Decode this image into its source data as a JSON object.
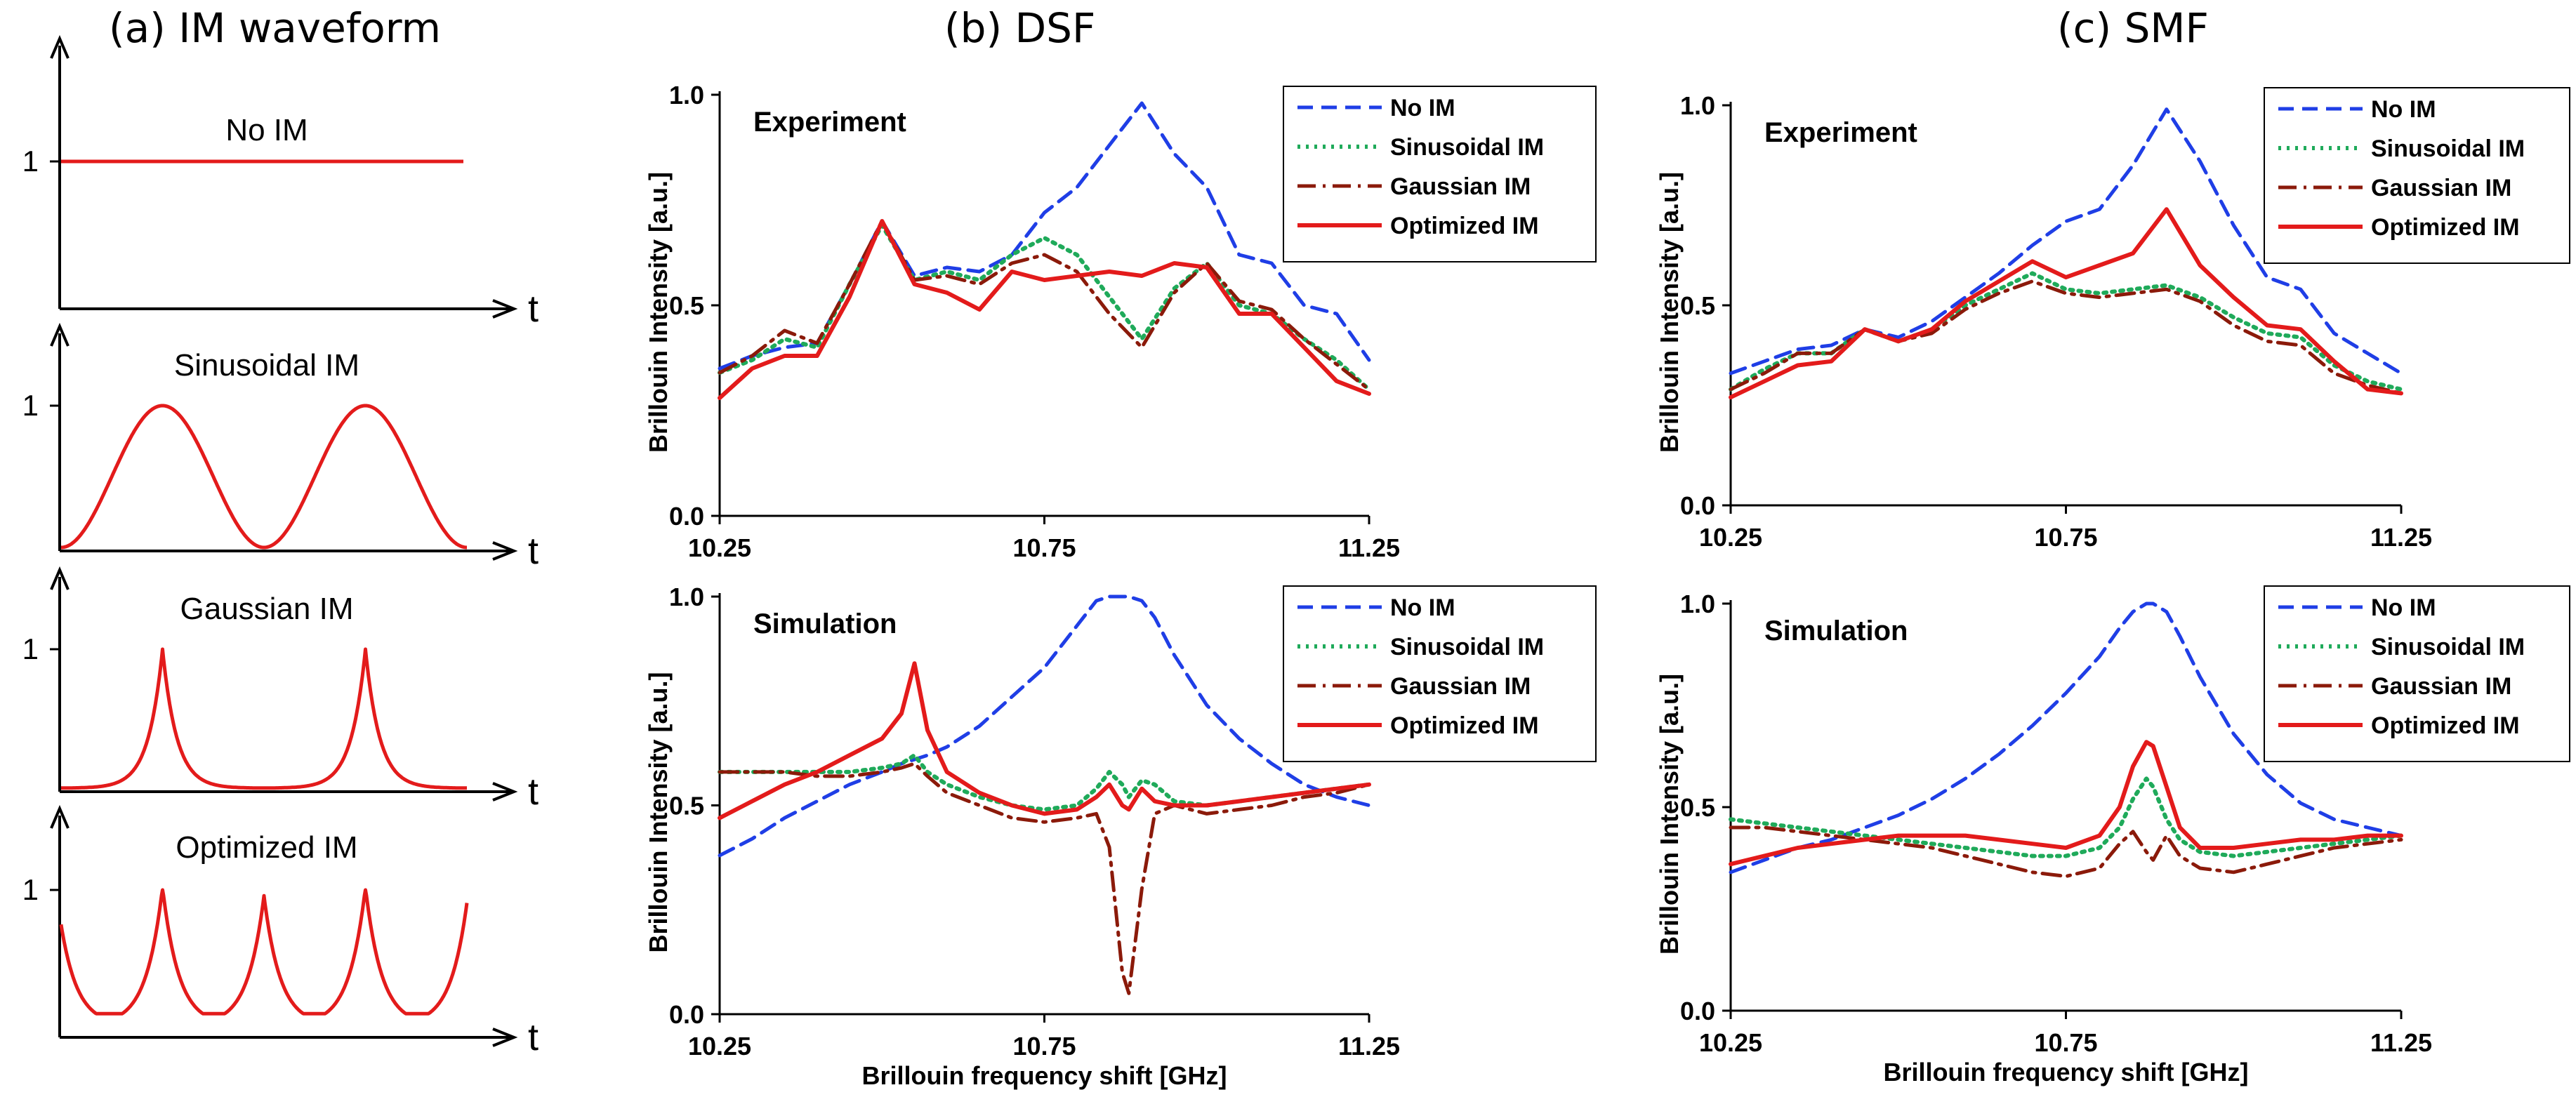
{
  "panel_titles": {
    "a": "(a) IM waveform",
    "b": "(b) DSF",
    "c": "(c) SMF"
  },
  "waveform_panel": {
    "t_label": "t",
    "y_tick": "1",
    "waveforms": [
      {
        "key": "no",
        "label": "No IM"
      },
      {
        "key": "sin",
        "label": "Sinusoidal IM"
      },
      {
        "key": "gauss",
        "label": "Gaussian IM"
      },
      {
        "key": "opt",
        "label": "Optimized IM"
      }
    ]
  },
  "colors": {
    "no_im": "#1f3ee6",
    "sinusoidal": "#1faa5a",
    "gaussian": "#8b1a0a",
    "optimized": "#e31b1b",
    "axis": "#000000"
  },
  "chart_data": [
    {
      "id": "dsf-exp",
      "type": "line",
      "panel": "DSF",
      "title": "Experiment",
      "xlabel": "",
      "ylabel": "Brillouin Intensity [a.u.]",
      "xlim": [
        10.25,
        11.25
      ],
      "ylim": [
        0,
        1.0
      ],
      "xticks": [
        "10.25",
        "10.75",
        "11.25"
      ],
      "yticks": [
        "0.0",
        "0.5",
        "1.0"
      ],
      "legend": "top-right",
      "x": [
        10.25,
        10.3,
        10.35,
        10.4,
        10.45,
        10.5,
        10.55,
        10.6,
        10.65,
        10.7,
        10.75,
        10.8,
        10.85,
        10.9,
        10.95,
        11.0,
        11.05,
        11.1,
        11.15,
        11.2,
        11.25
      ],
      "series": [
        {
          "name": "No IM",
          "style": "dashed",
          "values": [
            0.35,
            0.38,
            0.4,
            0.41,
            0.55,
            0.7,
            0.57,
            0.59,
            0.58,
            0.62,
            0.72,
            0.78,
            0.88,
            0.98,
            0.86,
            0.78,
            0.62,
            0.6,
            0.5,
            0.48,
            0.37
          ]
        },
        {
          "name": "Sinusoidal IM",
          "style": "dotted",
          "values": [
            0.34,
            0.37,
            0.42,
            0.4,
            0.55,
            0.69,
            0.56,
            0.58,
            0.56,
            0.62,
            0.66,
            0.62,
            0.52,
            0.42,
            0.54,
            0.6,
            0.5,
            0.48,
            0.42,
            0.37,
            0.3
          ]
        },
        {
          "name": "Gaussian IM",
          "style": "dashdot",
          "values": [
            0.34,
            0.38,
            0.44,
            0.41,
            0.55,
            0.7,
            0.56,
            0.57,
            0.55,
            0.6,
            0.62,
            0.58,
            0.48,
            0.4,
            0.53,
            0.6,
            0.51,
            0.49,
            0.42,
            0.36,
            0.3
          ]
        },
        {
          "name": "Optimized IM",
          "style": "solid",
          "values": [
            0.28,
            0.35,
            0.38,
            0.38,
            0.52,
            0.7,
            0.55,
            0.53,
            0.49,
            0.58,
            0.56,
            0.57,
            0.58,
            0.57,
            0.6,
            0.59,
            0.48,
            0.48,
            0.4,
            0.32,
            0.29
          ]
        }
      ]
    },
    {
      "id": "dsf-sim",
      "type": "line",
      "panel": "DSF",
      "title": "Simulation",
      "xlabel": "Brillouin frequency shift [GHz]",
      "ylabel": "Brillouin Intensity [a.u.]",
      "xlim": [
        10.25,
        11.25
      ],
      "ylim": [
        0,
        1.0
      ],
      "xticks": [
        "10.25",
        "10.75",
        "11.25"
      ],
      "yticks": [
        "0.0",
        "0.5",
        "1.0"
      ],
      "legend": "top-right",
      "x": [
        10.25,
        10.3,
        10.35,
        10.4,
        10.45,
        10.5,
        10.53,
        10.55,
        10.57,
        10.6,
        10.65,
        10.7,
        10.75,
        10.8,
        10.83,
        10.85,
        10.87,
        10.88,
        10.9,
        10.92,
        10.95,
        11.0,
        11.05,
        11.1,
        11.15,
        11.2,
        11.25
      ],
      "series": [
        {
          "name": "No IM",
          "style": "dashed",
          "values": [
            0.38,
            0.42,
            0.47,
            0.51,
            0.55,
            0.58,
            0.6,
            0.61,
            0.62,
            0.64,
            0.69,
            0.76,
            0.83,
            0.93,
            0.99,
            1.0,
            1.0,
            1.0,
            0.99,
            0.95,
            0.86,
            0.74,
            0.66,
            0.6,
            0.55,
            0.52,
            0.5
          ]
        },
        {
          "name": "Sinusoidal IM",
          "style": "dotted",
          "values": [
            0.58,
            0.58,
            0.58,
            0.58,
            0.58,
            0.59,
            0.6,
            0.62,
            0.58,
            0.55,
            0.52,
            0.5,
            0.49,
            0.5,
            0.54,
            0.58,
            0.55,
            0.52,
            0.56,
            0.55,
            0.51,
            0.5,
            0.51,
            0.52,
            0.53,
            0.54,
            0.55
          ]
        },
        {
          "name": "Gaussian IM",
          "style": "dashdot",
          "values": [
            0.58,
            0.58,
            0.58,
            0.57,
            0.57,
            0.58,
            0.59,
            0.6,
            0.57,
            0.53,
            0.5,
            0.47,
            0.46,
            0.47,
            0.48,
            0.4,
            0.1,
            0.05,
            0.3,
            0.48,
            0.5,
            0.48,
            0.49,
            0.5,
            0.52,
            0.53,
            0.55
          ]
        },
        {
          "name": "Optimized IM",
          "style": "solid",
          "values": [
            0.47,
            0.51,
            0.55,
            0.58,
            0.62,
            0.66,
            0.72,
            0.84,
            0.68,
            0.58,
            0.53,
            0.5,
            0.48,
            0.49,
            0.52,
            0.55,
            0.5,
            0.49,
            0.54,
            0.51,
            0.5,
            0.5,
            0.51,
            0.52,
            0.53,
            0.54,
            0.55
          ]
        }
      ]
    },
    {
      "id": "smf-exp",
      "type": "line",
      "panel": "SMF",
      "title": "Experiment",
      "xlabel": "",
      "ylabel": "Brillouin Intensity [a.u.]",
      "xlim": [
        10.25,
        11.25
      ],
      "ylim": [
        0,
        1.0
      ],
      "xticks": [
        "10.25",
        "10.75",
        "11.25"
      ],
      "yticks": [
        "0.0",
        "0.5",
        "1.0"
      ],
      "legend": "top-right",
      "x": [
        10.25,
        10.3,
        10.35,
        10.4,
        10.45,
        10.5,
        10.55,
        10.6,
        10.65,
        10.7,
        10.75,
        10.8,
        10.85,
        10.9,
        10.95,
        11.0,
        11.05,
        11.1,
        11.15,
        11.2,
        11.25
      ],
      "series": [
        {
          "name": "No IM",
          "style": "dashed",
          "values": [
            0.33,
            0.36,
            0.39,
            0.4,
            0.44,
            0.42,
            0.46,
            0.52,
            0.58,
            0.65,
            0.71,
            0.74,
            0.85,
            0.99,
            0.86,
            0.7,
            0.57,
            0.54,
            0.43,
            0.38,
            0.33
          ]
        },
        {
          "name": "Sinusoidal IM",
          "style": "dotted",
          "values": [
            0.29,
            0.34,
            0.38,
            0.38,
            0.44,
            0.41,
            0.44,
            0.5,
            0.54,
            0.58,
            0.54,
            0.53,
            0.54,
            0.55,
            0.52,
            0.47,
            0.43,
            0.42,
            0.35,
            0.31,
            0.29
          ]
        },
        {
          "name": "Gaussian IM",
          "style": "dashdot",
          "values": [
            0.29,
            0.33,
            0.38,
            0.38,
            0.44,
            0.41,
            0.43,
            0.49,
            0.53,
            0.56,
            0.53,
            0.52,
            0.53,
            0.54,
            0.51,
            0.45,
            0.41,
            0.4,
            0.33,
            0.3,
            0.28
          ]
        },
        {
          "name": "Optimized IM",
          "style": "solid",
          "values": [
            0.27,
            0.31,
            0.35,
            0.36,
            0.44,
            0.41,
            0.44,
            0.51,
            0.56,
            0.61,
            0.57,
            0.6,
            0.63,
            0.74,
            0.6,
            0.52,
            0.45,
            0.44,
            0.36,
            0.29,
            0.28
          ]
        }
      ]
    },
    {
      "id": "smf-sim",
      "type": "line",
      "panel": "SMF",
      "title": "Simulation",
      "xlabel": "Brillouin frequency shift [GHz]",
      "ylabel": "Brillouin Intensity [a.u.]",
      "xlim": [
        10.25,
        11.25
      ],
      "ylim": [
        0,
        1.0
      ],
      "xticks": [
        "10.25",
        "10.75",
        "11.25"
      ],
      "yticks": [
        "0.0",
        "0.5",
        "1.0"
      ],
      "legend": "top-right",
      "x": [
        10.25,
        10.3,
        10.35,
        10.4,
        10.45,
        10.5,
        10.55,
        10.6,
        10.65,
        10.7,
        10.75,
        10.8,
        10.83,
        10.85,
        10.87,
        10.88,
        10.9,
        10.92,
        10.95,
        11.0,
        11.05,
        11.1,
        11.15,
        11.2,
        11.25
      ],
      "series": [
        {
          "name": "No IM",
          "style": "dashed",
          "values": [
            0.34,
            0.37,
            0.4,
            0.42,
            0.45,
            0.48,
            0.52,
            0.57,
            0.63,
            0.7,
            0.78,
            0.87,
            0.94,
            0.98,
            1.0,
            1.0,
            0.98,
            0.92,
            0.82,
            0.68,
            0.58,
            0.51,
            0.47,
            0.45,
            0.43
          ]
        },
        {
          "name": "Sinusoidal IM",
          "style": "dotted",
          "values": [
            0.47,
            0.46,
            0.45,
            0.44,
            0.43,
            0.42,
            0.41,
            0.4,
            0.39,
            0.38,
            0.38,
            0.4,
            0.45,
            0.52,
            0.57,
            0.55,
            0.47,
            0.42,
            0.39,
            0.38,
            0.39,
            0.4,
            0.41,
            0.42,
            0.43
          ]
        },
        {
          "name": "Gaussian IM",
          "style": "dashdot",
          "values": [
            0.45,
            0.45,
            0.44,
            0.43,
            0.42,
            0.41,
            0.4,
            0.38,
            0.36,
            0.34,
            0.33,
            0.35,
            0.41,
            0.44,
            0.39,
            0.37,
            0.43,
            0.38,
            0.35,
            0.34,
            0.36,
            0.38,
            0.4,
            0.41,
            0.42
          ]
        },
        {
          "name": "Optimized IM",
          "style": "solid",
          "values": [
            0.36,
            0.38,
            0.4,
            0.41,
            0.42,
            0.43,
            0.43,
            0.43,
            0.42,
            0.41,
            0.4,
            0.43,
            0.5,
            0.6,
            0.66,
            0.65,
            0.55,
            0.45,
            0.4,
            0.4,
            0.41,
            0.42,
            0.42,
            0.43,
            0.43
          ]
        }
      ]
    }
  ]
}
